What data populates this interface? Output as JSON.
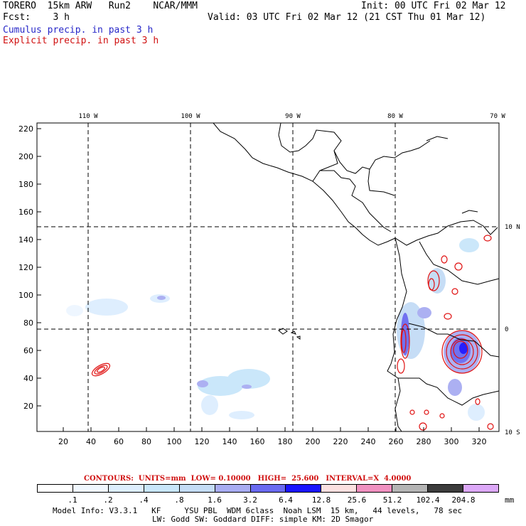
{
  "header": {
    "line1_left": "TORERO  15km ARW   Run2    NCAR/MMM",
    "line1_right": "Init: 00 UTC Fri 02 Mar 12",
    "line2_left": "Fcst:    3 h",
    "line2_right": "Valid: 03 UTC Fri 02 Mar 12 (21 CST Thu 01 Mar 12)",
    "line3": "Cumulus precip. in past 3 h",
    "line4": "Explicit precip. in past 3 h"
  },
  "map": {
    "lon_labels": [
      "110 W",
      "100 W",
      "90 W",
      "80 W",
      "70 W"
    ],
    "lat_labels": [
      "10 N",
      "0",
      "10 S"
    ],
    "y_ticks": [
      "220",
      "200",
      "180",
      "160",
      "140",
      "120",
      "100",
      "80",
      "60",
      "40",
      "20"
    ],
    "x_ticks": [
      "20",
      "40",
      "60",
      "80",
      "100",
      "120",
      "140",
      "160",
      "180",
      "200",
      "220",
      "240",
      "260",
      "280",
      "300",
      "320"
    ]
  },
  "colorbar": {
    "title_contours": "CONTOURS:  UNITS=mm  LOW= 0.10000",
    "title_high": "HIGH=  25.600",
    "title_interval": "INTERVAL=X  4.0000",
    "labels": [
      ".1",
      ".2",
      ".4",
      ".8",
      "1.6",
      "3.2",
      "6.4",
      "12.8",
      "25.6",
      "51.2",
      "102.4",
      "204.8"
    ],
    "unit": "mm",
    "colors": [
      "#ffffff",
      "#f0f8ff",
      "#ddeefe",
      "#c8e6fa",
      "#c4dcf6",
      "#a8acf2",
      "#6a6af0",
      "#1a14ff",
      "#fce0e0",
      "#f090c0",
      "#b4b4b4",
      "#3c3c3c",
      "#dca8f8"
    ]
  },
  "footer": {
    "line1": "Model Info: V3.3.1   KF     YSU PBL  WDM 6class  Noah LSM  15 km,   44 levels,   78 sec",
    "line2": "LW: Godd SW: Goddard DIFF: simple KM: 2D Smagor"
  }
}
